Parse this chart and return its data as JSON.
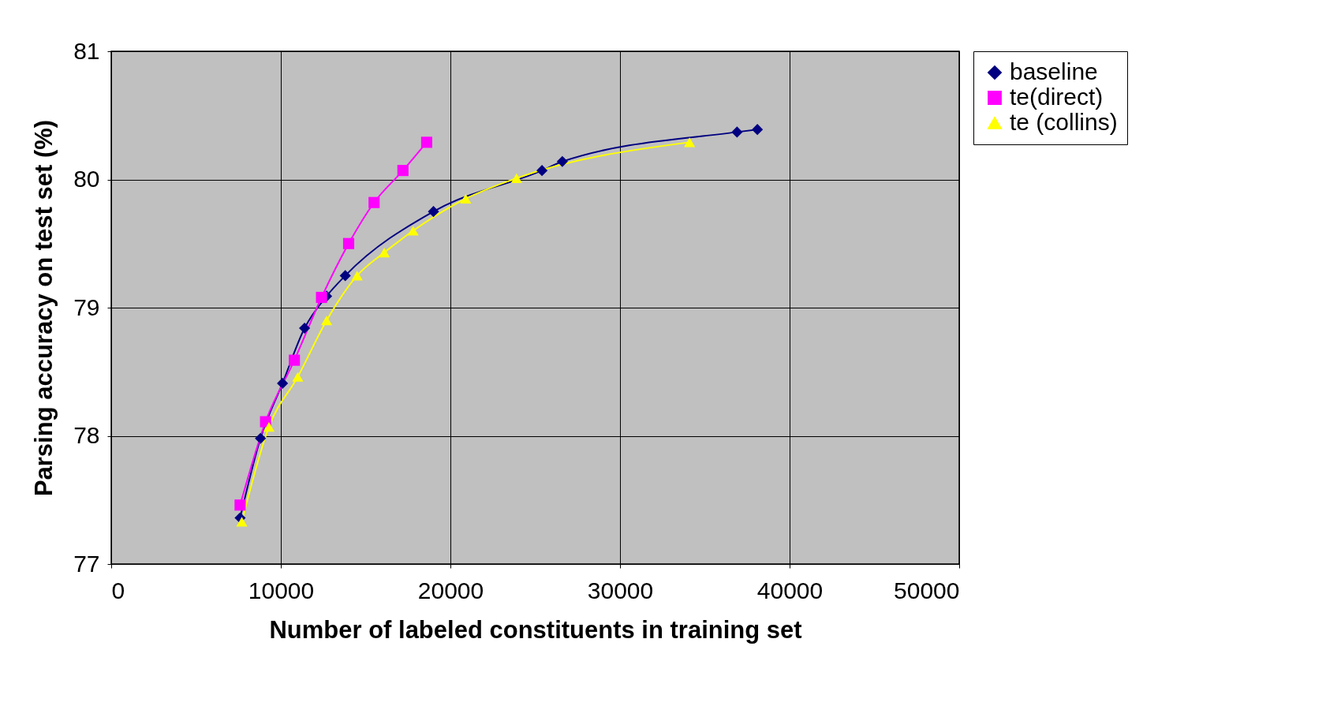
{
  "chart_data": {
    "type": "line",
    "xlabel": "Number of labeled constituents  in training set",
    "ylabel": "Parsing accuracy on test set (%)",
    "xlim": [
      0,
      50000
    ],
    "xticks": [
      0,
      10000,
      20000,
      30000,
      40000,
      50000
    ],
    "ylim": [
      77,
      81
    ],
    "yticks": [
      77,
      78,
      79,
      80,
      81
    ],
    "grid": true,
    "legend": "right",
    "series": [
      {
        "name": "baseline",
        "color": "#000080",
        "marker": "diamond",
        "x": [
          7600,
          8800,
          10100,
          11400,
          12700,
          13800,
          19000,
          25400,
          26600,
          36900,
          38100
        ],
        "values": [
          77.36,
          77.98,
          78.41,
          78.84,
          79.09,
          79.25,
          79.75,
          80.07,
          80.14,
          80.37,
          80.39
        ]
      },
      {
        "name": "te(direct)",
        "color": "#ff00ff",
        "marker": "square",
        "x": [
          7600,
          9100,
          10800,
          12400,
          14000,
          15500,
          17200,
          18600
        ],
        "values": [
          77.46,
          78.11,
          78.59,
          79.08,
          79.5,
          79.82,
          80.07,
          80.29
        ]
      },
      {
        "name": "te (collins)",
        "color": "#ffff00",
        "marker": "triangle",
        "x": [
          7700,
          9300,
          11000,
          12700,
          14500,
          16100,
          17800,
          20900,
          23900,
          34100
        ],
        "values": [
          77.33,
          78.07,
          78.46,
          78.9,
          79.25,
          79.43,
          79.6,
          79.85,
          80.01,
          80.29
        ]
      }
    ]
  }
}
